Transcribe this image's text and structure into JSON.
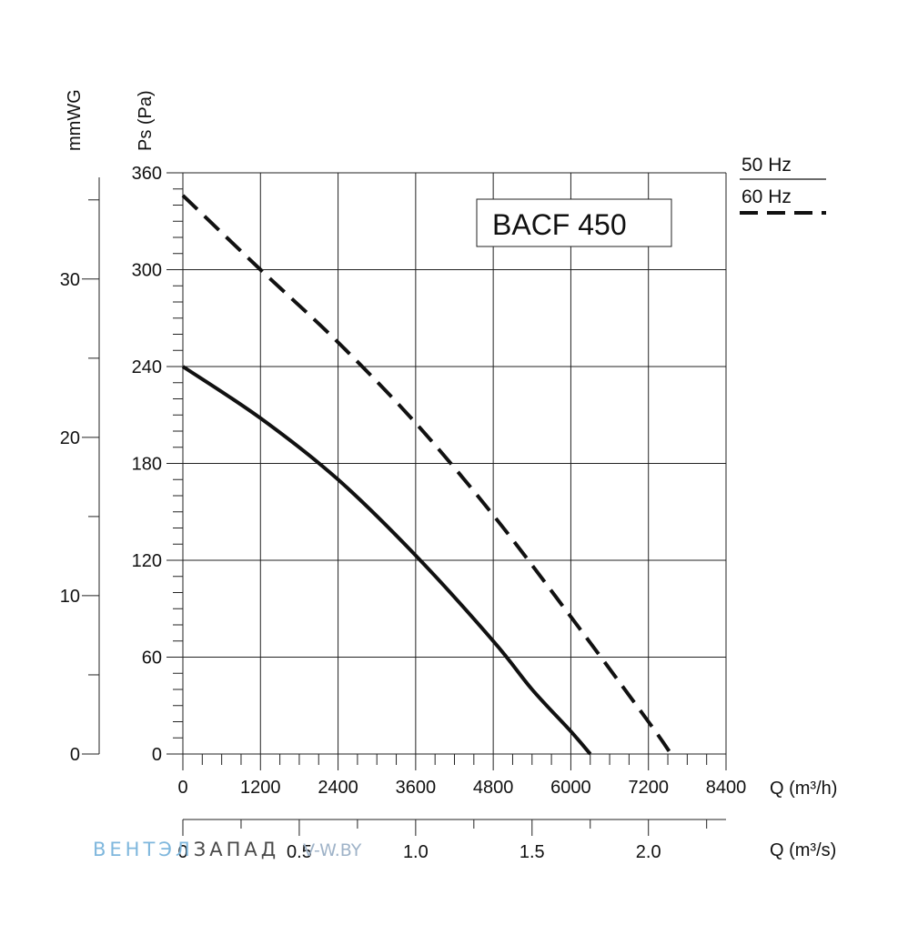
{
  "chart_data": {
    "type": "line",
    "title": "BACF 450",
    "ylabel": "Ps (Pa)",
    "ylabel_secondary": "mmWG",
    "xlabel": "Q (m³/h)",
    "xlabel_secondary": "Q (m³/s)",
    "xlim": [
      0,
      8400
    ],
    "ylim": [
      0,
      360
    ],
    "ylim_secondary": [
      0,
      36.7
    ],
    "xlim_secondary": [
      0,
      2.333
    ],
    "grid": true,
    "x_ticks": [
      "0",
      "1200",
      "2400",
      "3600",
      "4800",
      "6000",
      "7200",
      "8400"
    ],
    "y_ticks": [
      "0",
      "60",
      "120",
      "180",
      "240",
      "300",
      "360"
    ],
    "y_ticks_secondary": [
      "0",
      "10",
      "20",
      "30"
    ],
    "x_ticks_secondary": [
      "0",
      "0.5",
      "1.0",
      "1.5",
      "2.0"
    ],
    "legend": {
      "placement": "top-right outside",
      "entries": [
        "50 Hz",
        "60 Hz"
      ]
    },
    "series": [
      {
        "name": "50 Hz",
        "style": "solid",
        "color": "#111111",
        "x": [
          0,
          1200,
          2400,
          3600,
          4800,
          5400,
          6000,
          6300
        ],
        "y": [
          240,
          208,
          170,
          123,
          70,
          40,
          14,
          0
        ]
      },
      {
        "name": "60 Hz",
        "style": "dashed",
        "color": "#111111",
        "x": [
          0,
          1200,
          2400,
          3600,
          4800,
          6000,
          7200,
          7550
        ],
        "y": [
          346,
          300,
          255,
          205,
          148,
          85,
          20,
          0
        ]
      }
    ]
  },
  "watermark": {
    "part1": "ВЕНТЭЛ",
    "part2": "ЗАПАД",
    "part3": "V-W.BY"
  }
}
